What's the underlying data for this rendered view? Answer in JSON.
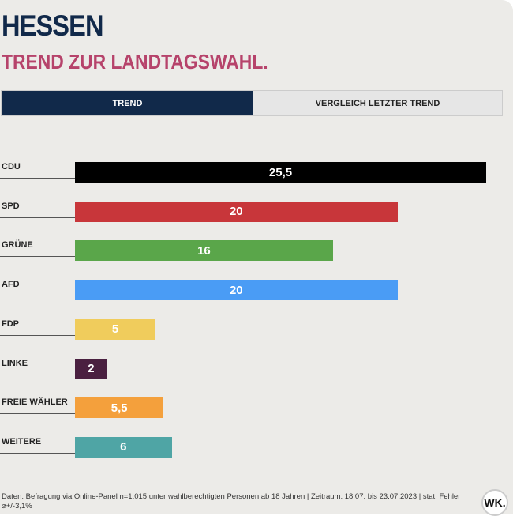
{
  "header": {
    "title": "HESSEN",
    "subtitle": "TREND ZUR LANDTAGSWAHL."
  },
  "tabs": [
    {
      "label": "TREND",
      "active": true
    },
    {
      "label": "VERGLEICH LETZTER TREND",
      "active": false
    }
  ],
  "chart_data": {
    "type": "bar",
    "orientation": "horizontal",
    "categories": [
      "CDU",
      "SPD",
      "GRÜNE",
      "AFD",
      "FDP",
      "LINKE",
      "FREIE WÄHLER",
      "WEITERE"
    ],
    "values": [
      25.5,
      20,
      16,
      20,
      5,
      2,
      5.5,
      6
    ],
    "value_labels": [
      "25,5",
      "20",
      "16",
      "20",
      "5",
      "2",
      "5,5",
      "6"
    ],
    "colors": [
      "#000000",
      "#c8363a",
      "#5aa64a",
      "#4a9cf5",
      "#f0cc5c",
      "#4a2040",
      "#f4a03c",
      "#4fa5a5"
    ],
    "xlim": [
      0,
      25.5
    ]
  },
  "footer": {
    "text": "Daten: Befragung via Online-Panel n=1.015 unter wahlberechtigten Personen ab 18 Jahren | Zeitraum: 18.07. bis 23.07.2023 | stat. Fehler ⌀+/-3,1%",
    "logo": "WK."
  }
}
